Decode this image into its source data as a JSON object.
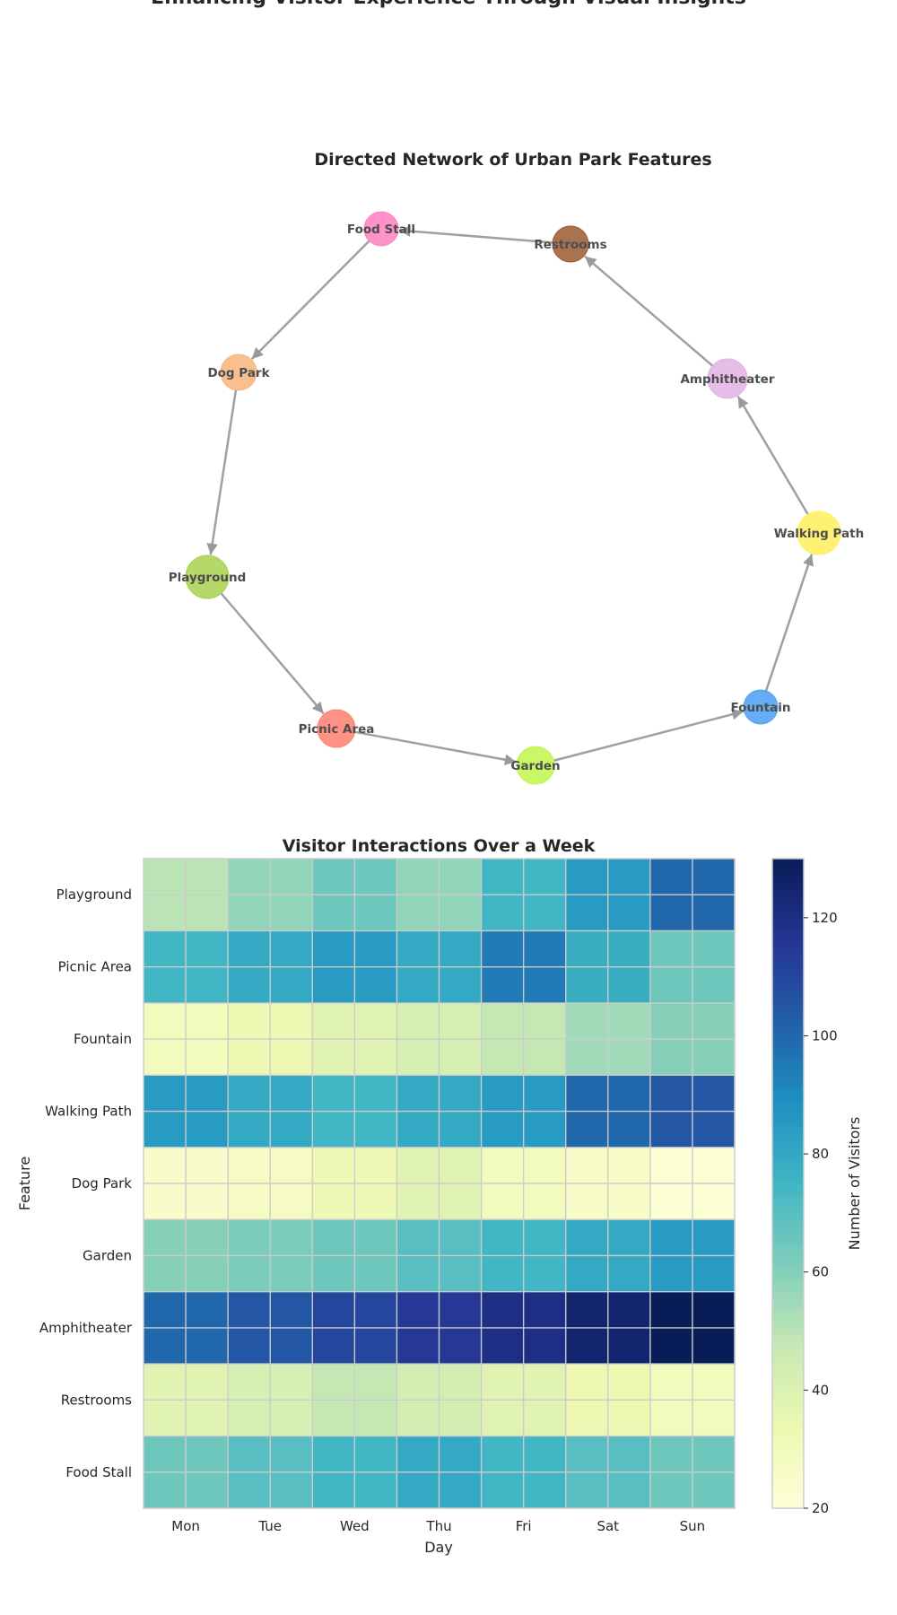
{
  "page": {
    "suptitle": "Enhancing Visitor Experience Through Visual Insights"
  },
  "network": {
    "title": "Directed Network of Urban Park Features",
    "nodes": [
      {
        "name": "Playground",
        "color": "#a8d151"
      },
      {
        "name": "Picnic Area",
        "color": "#ff7f6e"
      },
      {
        "name": "Garden",
        "color": "#bff64b"
      },
      {
        "name": "Fountain",
        "color": "#4a9ff5"
      },
      {
        "name": "Walking Path",
        "color": "#ffef5c"
      },
      {
        "name": "Amphitheater",
        "color": "#e1b1e3"
      },
      {
        "name": "Restrooms",
        "color": "#9b5a31"
      },
      {
        "name": "Food Stall",
        "color": "#ff80c0"
      },
      {
        "name": "Dog Park",
        "color": "#f6b57a"
      }
    ],
    "edges": [
      [
        "Dog Park",
        "Playground"
      ],
      [
        "Playground",
        "Picnic Area"
      ],
      [
        "Picnic Area",
        "Garden"
      ],
      [
        "Garden",
        "Fountain"
      ],
      [
        "Fountain",
        "Walking Path"
      ],
      [
        "Walking Path",
        "Amphitheater"
      ],
      [
        "Amphitheater",
        "Restrooms"
      ],
      [
        "Restrooms",
        "Food Stall"
      ],
      [
        "Food Stall",
        "Dog Park"
      ]
    ]
  },
  "chart_data": {
    "type": "heatmap",
    "title": "Visitor Interactions Over a Week",
    "xlabel": "Day",
    "ylabel": "Feature",
    "x": [
      "Mon",
      "Tue",
      "Wed",
      "Thu",
      "Fri",
      "Sat",
      "Sun"
    ],
    "y": [
      "Playground",
      "Picnic Area",
      "Fountain",
      "Walking Path",
      "Dog Park",
      "Garden",
      "Amphitheater",
      "Restrooms",
      "Food Stall"
    ],
    "values": [
      [
        50,
        58,
        65,
        58,
        75,
        85,
        100
      ],
      [
        75,
        80,
        85,
        80,
        95,
        78,
        65
      ],
      [
        30,
        33,
        38,
        42,
        48,
        55,
        60
      ],
      [
        85,
        80,
        75,
        80,
        85,
        100,
        105
      ],
      [
        25,
        28,
        32,
        38,
        30,
        26,
        22
      ],
      [
        60,
        62,
        65,
        70,
        75,
        80,
        85
      ],
      [
        100,
        105,
        110,
        115,
        120,
        125,
        130
      ],
      [
        38,
        42,
        48,
        43,
        38,
        33,
        30
      ],
      [
        65,
        70,
        75,
        80,
        75,
        70,
        65
      ]
    ],
    "colorbar": {
      "label": "Number of Visitors",
      "range": [
        20,
        130
      ],
      "ticks": [
        20,
        40,
        60,
        80,
        100,
        120
      ],
      "colormap": "YlGnBu"
    }
  }
}
